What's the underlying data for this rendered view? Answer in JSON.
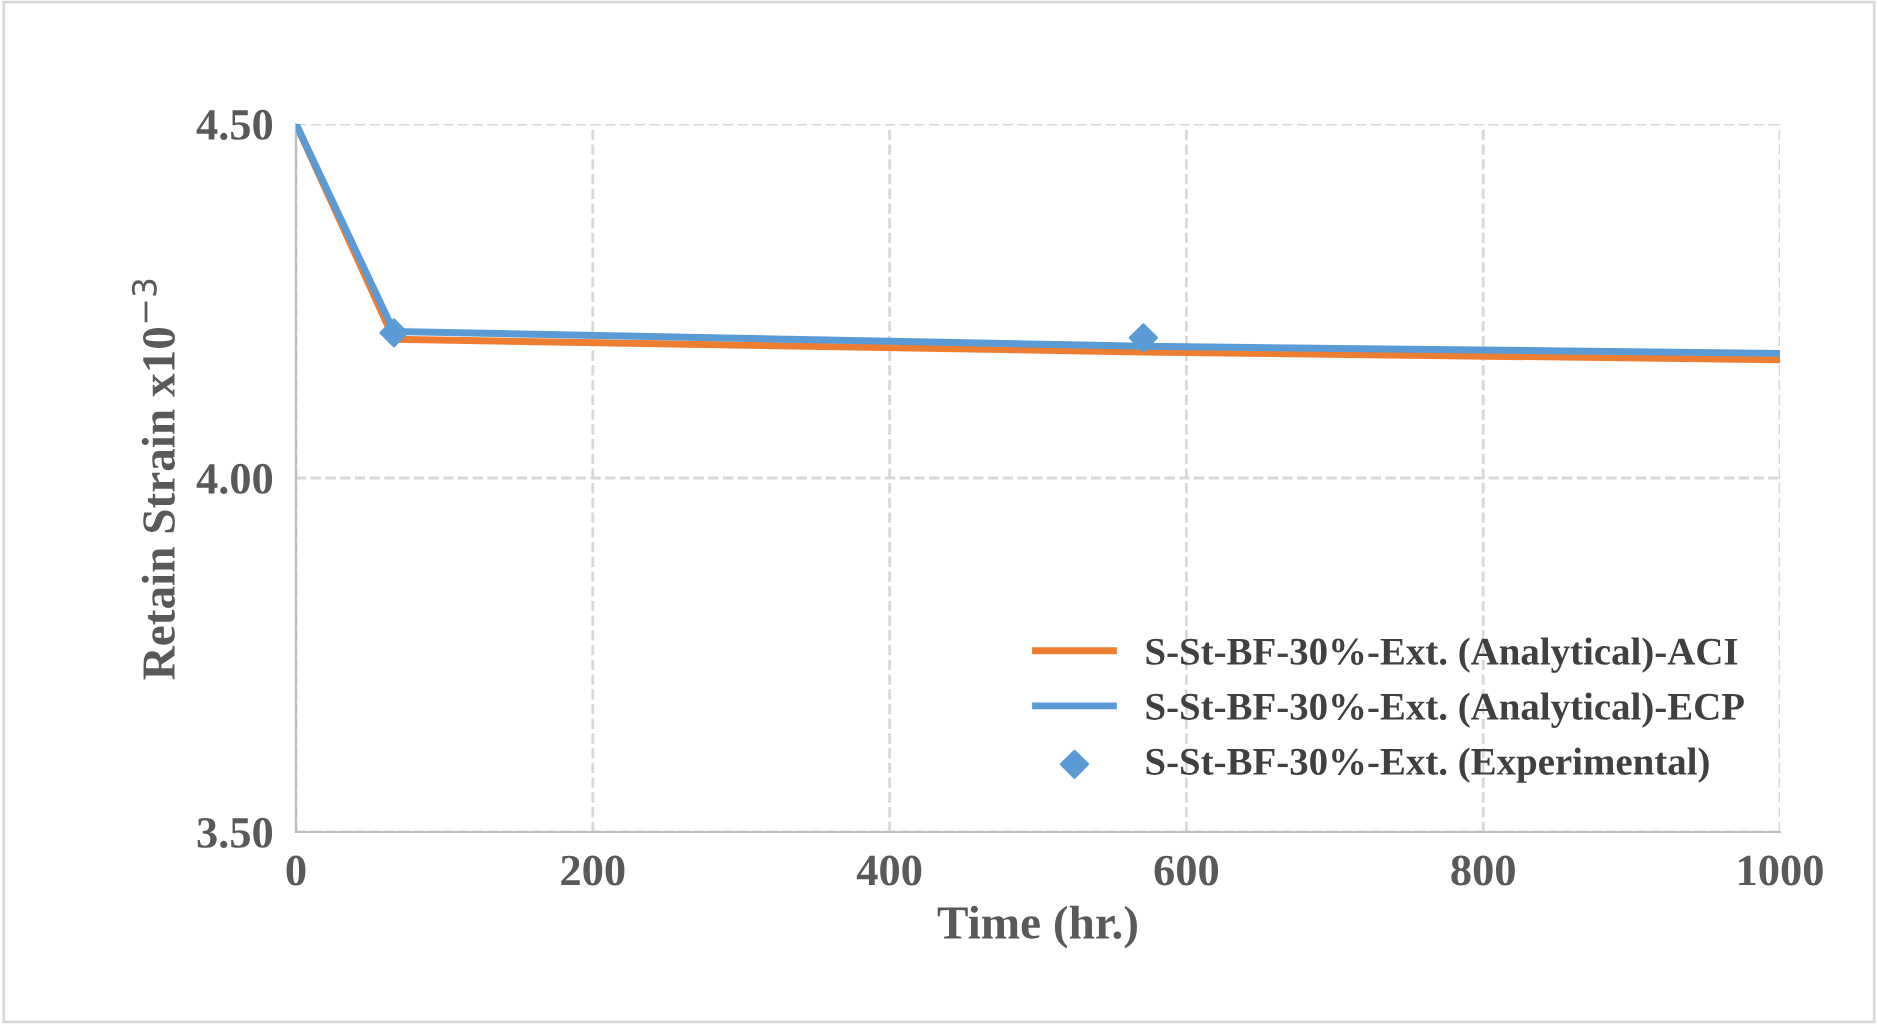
{
  "chart_data": {
    "type": "line",
    "xlabel": "Time (hr.)",
    "ylabel": "Retain Strain x10$^{−3}$",
    "xlim": [
      0,
      1000
    ],
    "ylim": [
      3.5,
      4.5
    ],
    "xticks": [
      0,
      200,
      400,
      600,
      800,
      1000
    ],
    "yticks": [
      {
        "value": 3.5,
        "label": "3.50"
      },
      {
        "value": 4.0,
        "label": "4.00"
      },
      {
        "value": 4.5,
        "label": "4.50"
      }
    ],
    "grid": true,
    "legend": "bottom right",
    "series": [
      {
        "name": "S-St-BF-30%-Ext. (Analytical)-ACI",
        "color": "#ed7d31",
        "x": [
          0,
          66,
          571,
          1000
        ],
        "values": [
          4.5,
          4.196,
          4.178,
          4.167
        ]
      },
      {
        "name": "S-St-BF-30%-Ext. (Analytical)-ECP",
        "color": "#5b9bd5",
        "x": [
          0,
          66,
          571,
          1000
        ],
        "values": [
          4.5,
          4.207,
          4.186,
          4.176
        ]
      },
      {
        "name": "S-St-BF-30%-Ext. (Experimental)",
        "type": "scatter",
        "marker": "diamond",
        "color": "#5b9bd5",
        "x": [
          66,
          571
        ],
        "values": [
          4.205,
          4.198
        ]
      }
    ]
  }
}
